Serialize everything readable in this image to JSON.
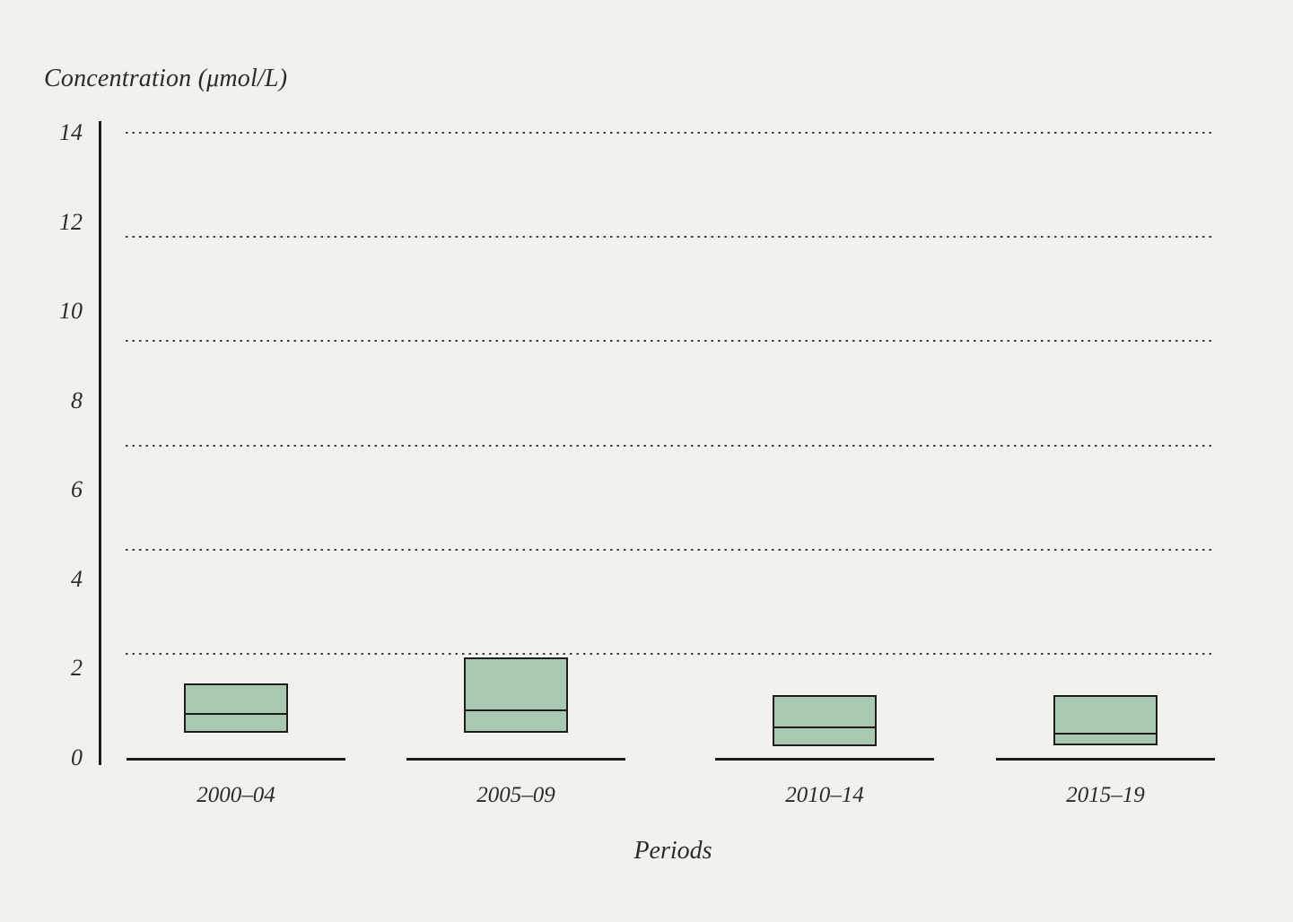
{
  "colors": {
    "background": "#f2f1ed",
    "ink": "#1d1d1b",
    "text": "#2c2b27",
    "box_fill": "#a9c8b1",
    "grid_dot": "#3f3f3d"
  },
  "chart_data": {
    "type": "boxplot",
    "title": "Concentration (μmol/L)",
    "ylabel": "Concentration (μmol/L)",
    "xlabel": "Periods",
    "categories": [
      "2000–04",
      "2005–09",
      "2010–14",
      "2015–19"
    ],
    "boxes": [
      {
        "category": "2000–04",
        "q1": 0.57,
        "median": 0.97,
        "q3": 1.67
      },
      {
        "category": "2005–09",
        "q1": 0.57,
        "median": 1.05,
        "q3": 2.25
      },
      {
        "category": "2010–14",
        "q1": 0.27,
        "median": 0.68,
        "q3": 1.4
      },
      {
        "category": "2015–19",
        "q1": 0.28,
        "median": 0.54,
        "q3": 1.4
      }
    ],
    "y_ticks": [
      0,
      2,
      4,
      6,
      8,
      10,
      12,
      14
    ],
    "ylim": [
      0,
      14
    ],
    "gridline_values": [
      2.33,
      4.67,
      7,
      9.33,
      11.67,
      14
    ],
    "grid_style": "dotted-horizontal",
    "legend": "none",
    "whiskers": "none"
  }
}
